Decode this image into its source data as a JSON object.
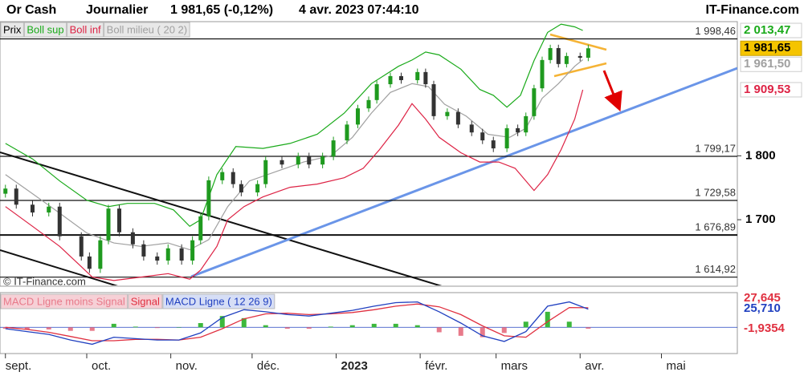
{
  "header": {
    "instrument": "Or Cash",
    "period": "Journalier",
    "quote": "1 981,65 (-0,12%)",
    "datetime": "4 avr. 2023 07:44:10",
    "site": "IT-Finance.com",
    "watermark": "© IT-Finance.com"
  },
  "chart_data": [
    {
      "type": "candlestick",
      "log_scale": true,
      "xlim": [
        -2,
        270
      ],
      "xticks": [
        {
          "value": 0,
          "label": "sept."
        },
        {
          "value": 30,
          "label": "oct."
        },
        {
          "value": 61,
          "label": "nov."
        },
        {
          "value": 91,
          "label": "déc."
        },
        {
          "value": 122,
          "label": "2023"
        },
        {
          "value": 153,
          "label": "févr."
        },
        {
          "value": 181,
          "label": "mars"
        },
        {
          "value": 212,
          "label": "avr."
        },
        {
          "value": 242,
          "label": "mai"
        }
      ],
      "ylim": [
        1603,
        2028
      ],
      "yticks": [
        {
          "value": 1800,
          "label": "1 800"
        },
        {
          "value": 1700,
          "label": "1 700"
        }
      ],
      "levels": [
        {
          "value": 1998.46,
          "label": "1 998,46"
        },
        {
          "value": 1799.17,
          "label": "1 799,17"
        },
        {
          "value": 1729.58,
          "label": "1 729,58"
        },
        {
          "value": 1676.89,
          "label": "1 676,89"
        },
        {
          "value": 1614.92,
          "label": "1 614,92"
        }
      ],
      "candles": {
        "name": "Prix",
        "up_color": "#1f9a1f",
        "down_color": "#333333",
        "last_label": "1 981,65",
        "x": [
          0,
          4,
          10,
          16,
          20,
          28,
          31,
          35,
          38,
          42,
          47,
          51,
          56,
          60,
          65,
          69,
          72,
          75,
          80,
          84,
          87,
          93,
          96,
          102,
          108,
          112,
          117,
          121,
          126,
          130,
          134,
          137,
          142,
          146,
          152,
          155,
          158,
          163,
          167,
          172,
          176,
          180,
          185,
          189,
          192,
          195,
          198,
          201,
          204,
          207,
          212,
          215
        ],
        "open": [
          1740,
          1748,
          1723,
          1711,
          1720,
          1675,
          1645,
          1627,
          1669,
          1717,
          1681,
          1663,
          1645,
          1639,
          1657,
          1639,
          1669,
          1705,
          1761,
          1774,
          1755,
          1742,
          1755,
          1793,
          1786,
          1799,
          1786,
          1799,
          1825,
          1851,
          1878,
          1892,
          1919,
          1933,
          1926,
          1940,
          1919,
          1865,
          1872,
          1851,
          1838,
          1825,
          1812,
          1845,
          1838,
          1865,
          1912,
          1961,
          1982,
          1954,
          1968,
          1965
        ],
        "high": [
          1754,
          1754,
          1729,
          1726,
          1726,
          1681,
          1651,
          1675,
          1723,
          1723,
          1687,
          1669,
          1651,
          1663,
          1663,
          1675,
          1711,
          1767,
          1780,
          1780,
          1761,
          1761,
          1799,
          1799,
          1805,
          1805,
          1805,
          1831,
          1857,
          1884,
          1898,
          1925,
          1939,
          1939,
          1946,
          1946,
          1925,
          1878,
          1878,
          1857,
          1844,
          1831,
          1851,
          1851,
          1871,
          1918,
          1967,
          1988,
          1988,
          1974,
          1974,
          1988
        ],
        "low": [
          1734,
          1717,
          1705,
          1705,
          1669,
          1639,
          1621,
          1621,
          1663,
          1675,
          1657,
          1639,
          1633,
          1633,
          1633,
          1633,
          1663,
          1699,
          1755,
          1749,
          1736,
          1736,
          1749,
          1780,
          1780,
          1780,
          1780,
          1793,
          1819,
          1845,
          1872,
          1886,
          1913,
          1920,
          1920,
          1913,
          1859,
          1859,
          1845,
          1832,
          1819,
          1806,
          1806,
          1832,
          1832,
          1859,
          1906,
          1955,
          1948,
          1948,
          1959,
          1959
        ],
        "close": [
          1748,
          1723,
          1711,
          1720,
          1675,
          1645,
          1627,
          1669,
          1717,
          1681,
          1663,
          1645,
          1639,
          1657,
          1639,
          1669,
          1705,
          1761,
          1774,
          1755,
          1742,
          1755,
          1793,
          1786,
          1799,
          1786,
          1799,
          1825,
          1851,
          1878,
          1892,
          1919,
          1933,
          1926,
          1940,
          1919,
          1865,
          1872,
          1851,
          1838,
          1825,
          1812,
          1845,
          1838,
          1865,
          1912,
          1961,
          1982,
          1954,
          1968,
          1965,
          1981.65
        ]
      },
      "series": [
        {
          "name": "Boll sup",
          "color": "#1aaa1a",
          "last_label": "2 013,47",
          "x": [
            0,
            10,
            20,
            30,
            38,
            45,
            55,
            62,
            68,
            72,
            78,
            85,
            95,
            105,
            115,
            125,
            135,
            145,
            150,
            155,
            160,
            168,
            175,
            180,
            185,
            190,
            195,
            200,
            205,
            210,
            213
          ],
          "values": [
            1820,
            1795,
            1760,
            1730,
            1720,
            1725,
            1725,
            1715,
            1690,
            1700,
            1770,
            1815,
            1812,
            1820,
            1835,
            1870,
            1920,
            1950,
            1961,
            1975,
            1970,
            1945,
            1910,
            1900,
            1880,
            1900,
            1960,
            2010,
            2025,
            2020,
            2013.47
          ]
        },
        {
          "name": "Boll inf",
          "color": "#dd2244",
          "last_label": "1 909,53",
          "x": [
            0,
            10,
            20,
            28,
            32,
            40,
            50,
            60,
            68,
            72,
            78,
            82,
            88,
            95,
            105,
            115,
            125,
            132,
            138,
            145,
            150,
            155,
            160,
            168,
            175,
            182,
            188,
            195,
            200,
            205,
            210,
            213
          ],
          "values": [
            1720,
            1690,
            1660,
            1630,
            1615,
            1610,
            1615,
            1620,
            1612,
            1625,
            1660,
            1700,
            1720,
            1735,
            1750,
            1755,
            1765,
            1780,
            1810,
            1850,
            1886,
            1860,
            1830,
            1805,
            1790,
            1790,
            1780,
            1745,
            1770,
            1810,
            1860,
            1909.53
          ]
        },
        {
          "name": "Boll milieu ( 20 2)",
          "color": "#a0a0a0",
          "last_label": "1 961,50",
          "x": [
            0,
            10,
            20,
            30,
            40,
            50,
            60,
            68,
            75,
            82,
            90,
            100,
            110,
            120,
            128,
            135,
            142,
            150,
            156,
            162,
            170,
            178,
            186,
            192,
            198,
            204,
            210,
            213
          ],
          "values": [
            1770,
            1740,
            1710,
            1680,
            1665,
            1660,
            1665,
            1655,
            1670,
            1720,
            1760,
            1775,
            1790,
            1800,
            1830,
            1870,
            1905,
            1920,
            1915,
            1885,
            1865,
            1835,
            1830,
            1845,
            1895,
            1920,
            1950,
            1961.5
          ]
        }
      ]
    },
    {
      "type": "macd",
      "ylim": [
        -36,
        48
      ],
      "x": [
        0,
        8,
        16,
        24,
        32,
        40,
        48,
        56,
        64,
        72,
        80,
        88,
        96,
        104,
        112,
        120,
        128,
        136,
        144,
        152,
        160,
        168,
        176,
        184,
        192,
        200,
        208,
        215
      ],
      "series": [
        {
          "name": "MACD Ligne moins Signal",
          "kind": "bar",
          "color": "#e87a8a",
          "up_color": "#3cb83c",
          "last_label": "-1,9354",
          "values": [
            -2,
            -3,
            -3,
            -5,
            -5,
            5,
            1,
            -1,
            0,
            6,
            16,
            13,
            3,
            -2,
            -2,
            1,
            3,
            5,
            5,
            3,
            -7,
            -12,
            -14,
            -8,
            8,
            22,
            8,
            -1.9354
          ]
        },
        {
          "name": "Signal",
          "color": "#e03040",
          "last_label": "27,645",
          "values": [
            0,
            -3,
            -7,
            -13,
            -19,
            -19,
            -17,
            -17,
            -18,
            -14,
            -2,
            12,
            19,
            20,
            18,
            19,
            21,
            25,
            30,
            33,
            29,
            18,
            2,
            -12,
            -14,
            8,
            28,
            27.6454
          ]
        },
        {
          "name": "MACD Ligne ( 12 26 9)",
          "color": "#2040c0",
          "last_label": "25,710",
          "values": [
            -2,
            -6,
            -10,
            -18,
            -24,
            -14,
            -16,
            -18,
            -18,
            -8,
            14,
            25,
            22,
            18,
            16,
            20,
            24,
            30,
            35,
            36,
            22,
            6,
            -12,
            -20,
            -6,
            30,
            36,
            25.71
          ]
        }
      ]
    }
  ]
}
